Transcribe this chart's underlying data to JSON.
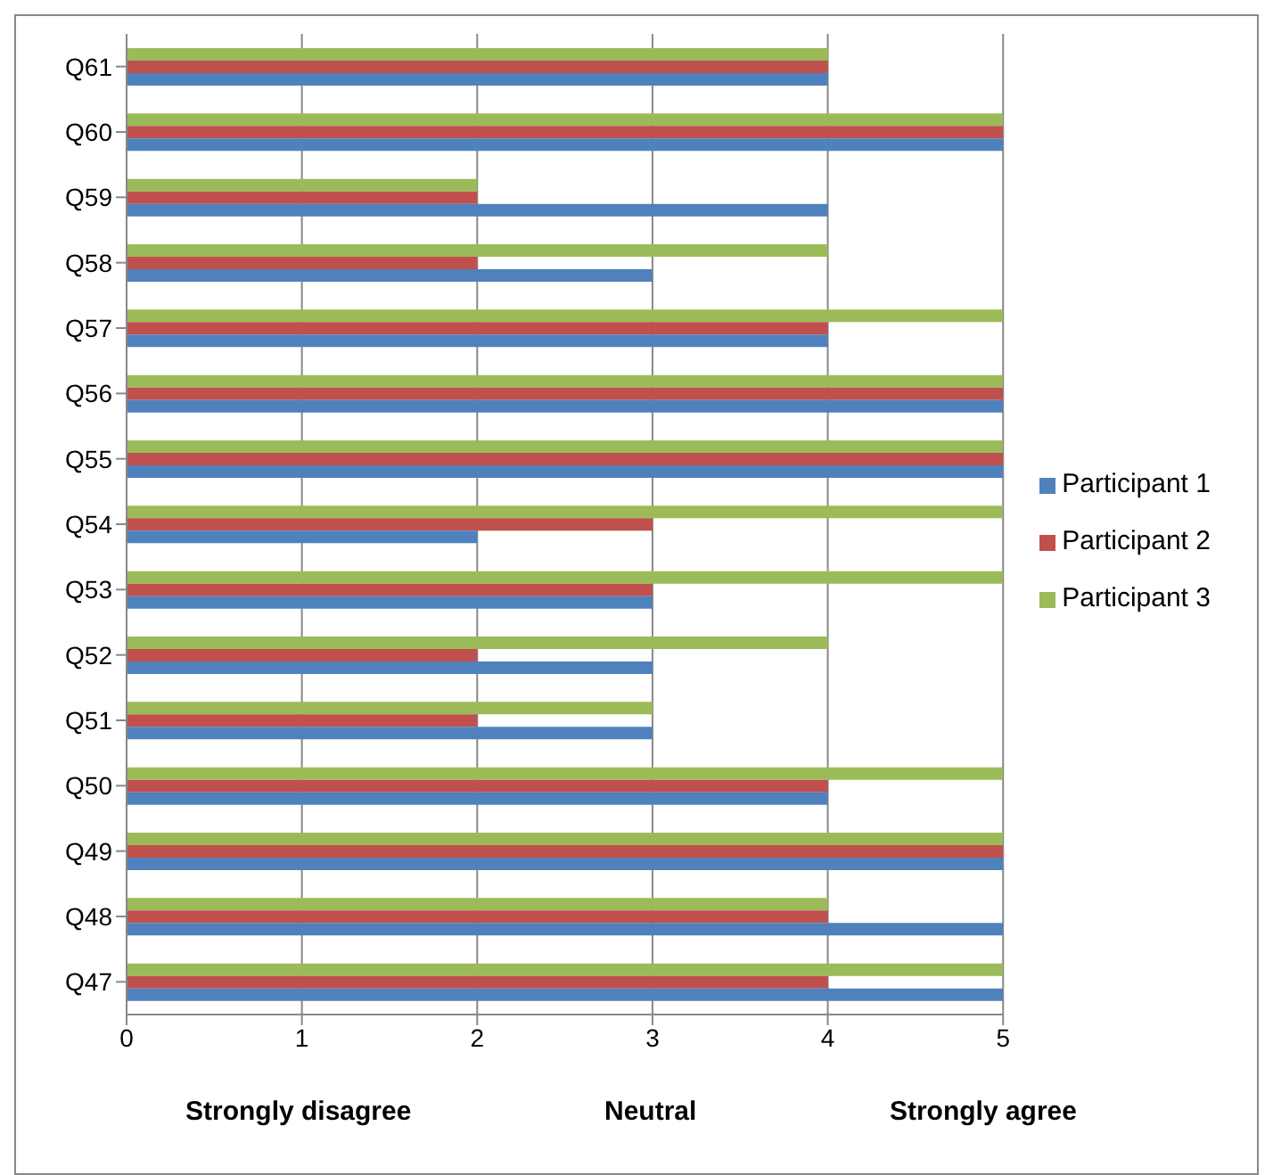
{
  "chart_data": {
    "type": "bar",
    "orientation": "horizontal",
    "categories": [
      "Q61",
      "Q60",
      "Q59",
      "Q58",
      "Q57",
      "Q56",
      "Q55",
      "Q54",
      "Q53",
      "Q52",
      "Q51",
      "Q50",
      "Q49",
      "Q48",
      "Q47"
    ],
    "series": [
      {
        "name": "Participant 3",
        "color": "#9bbb59",
        "values": [
          4,
          5,
          2,
          4,
          5,
          5,
          5,
          5,
          5,
          4,
          3,
          5,
          5,
          4,
          5
        ]
      },
      {
        "name": "Participant 2",
        "color": "#c0504d",
        "values": [
          4,
          5,
          2,
          2,
          4,
          5,
          5,
          3,
          3,
          2,
          2,
          4,
          5,
          4,
          4
        ]
      },
      {
        "name": "Participant 1",
        "color": "#4f81bd",
        "values": [
          4,
          5,
          4,
          3,
          4,
          5,
          5,
          2,
          3,
          3,
          3,
          4,
          5,
          5,
          5
        ]
      }
    ],
    "xlim": [
      0,
      5
    ],
    "xticks": [
      0,
      1,
      2,
      3,
      4,
      5
    ],
    "grid": "x",
    "legend": "right",
    "annotations": [
      "Strongly disagree",
      "Neutral",
      "Strongly agree"
    ]
  }
}
